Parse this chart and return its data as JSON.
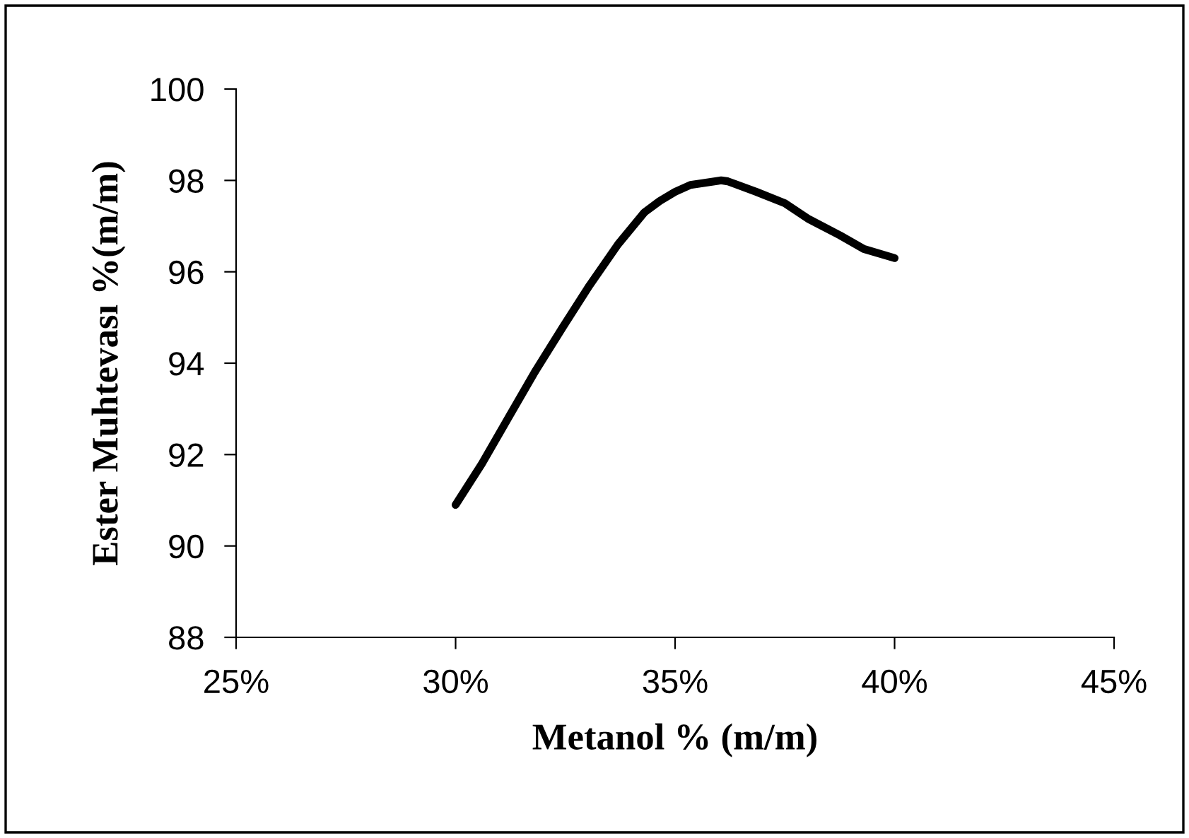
{
  "chart_data": {
    "type": "line",
    "xlabel": "Metanol % (m/m)",
    "ylabel": "Ester Muhtevası %(m/m)",
    "series": [
      {
        "color": "#000000",
        "x": [
          30,
          30.6,
          31.2,
          31.8,
          32.45,
          33.05,
          33.7,
          34.3,
          34.65,
          35,
          35.35,
          36.05,
          36.2,
          36.85,
          37.5,
          38.05,
          38.75,
          39.3,
          40
        ],
        "values": [
          90.9,
          91.8,
          92.8,
          93.8,
          94.8,
          95.7,
          96.6,
          97.3,
          97.55,
          97.75,
          97.9,
          98.0,
          97.98,
          97.75,
          97.5,
          97.15,
          96.8,
          96.5,
          96.3
        ]
      }
    ],
    "xlim": [
      25,
      45
    ],
    "xticks": [
      {
        "value": 25,
        "label": "25%"
      },
      {
        "value": 30,
        "label": "30%"
      },
      {
        "value": 35,
        "label": "35%"
      },
      {
        "value": 40,
        "label": "40%"
      },
      {
        "value": 45,
        "label": "45%"
      }
    ],
    "ylim": [
      88,
      100
    ],
    "yticks": [
      88,
      90,
      92,
      94,
      96,
      98,
      100
    ],
    "grid": false,
    "legend": false,
    "marker": "none",
    "line_style": "solid"
  }
}
